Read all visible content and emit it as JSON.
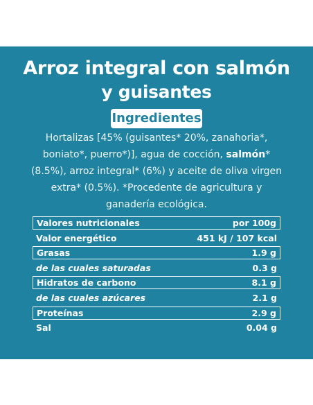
{
  "title": {
    "line1": "Arroz integral con salmón",
    "line2": "y guisantes"
  },
  "ingredients": {
    "heading": "Ingredientes",
    "text_before": "Hortalizas [45% (guisantes* 20%, zanahoria*, boniato*, puerro*)], agua de cocción,",
    "text_bold": "salmón",
    "text_after": "*(8.5%), arroz integral* (6%) y aceite de oliva virgen extra* (0.5%). *Procedente de agricultura y ganadería ecológica."
  },
  "nutrition": {
    "rows": [
      [
        "Valores nutricionales",
        "por 100g"
      ],
      [
        "Valor energético",
        "451 kJ / 107 kcal"
      ],
      [
        "Grasas",
        "1.9 g"
      ],
      [
        "de las cuales saturadas",
        "0.3 g"
      ],
      [
        "Hidratos de carbono",
        "8.1 g"
      ],
      [
        "de las cuales azúcares",
        "2.1 g"
      ],
      [
        "Proteínas",
        "2.9 g"
      ],
      [
        "Sal",
        "0.04 g"
      ]
    ]
  }
}
